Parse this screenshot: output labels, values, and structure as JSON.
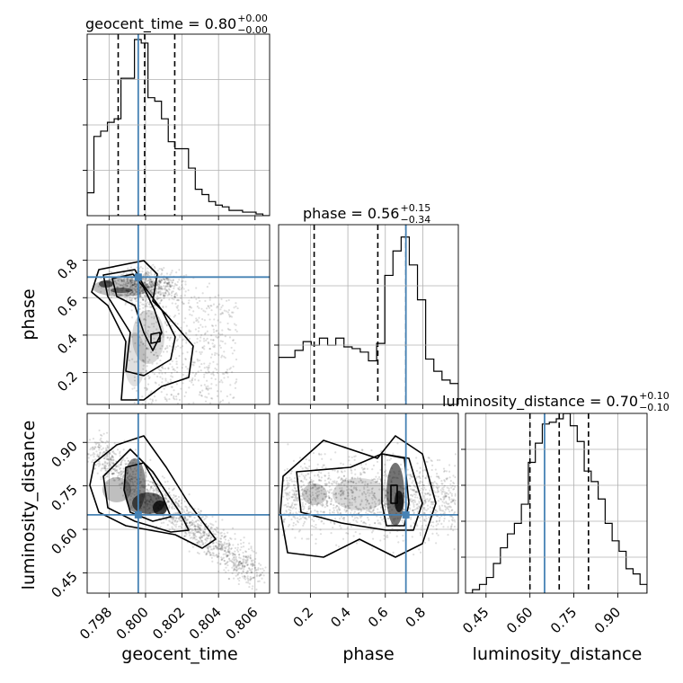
{
  "chart_data": {
    "type": "corner",
    "parameters": [
      "geocent_time",
      "phase",
      "luminosity_distance"
    ],
    "panel_titles": [
      {
        "name": "geocent_time",
        "median": "0.80",
        "plus": "+0.00",
        "minus": "−0.00"
      },
      {
        "name": "phase",
        "median": "0.56",
        "plus": "+0.15",
        "minus": "−0.34"
      },
      {
        "name": "luminosity_distance",
        "median": "0.70",
        "plus": "+0.10",
        "minus": "−0.10"
      }
    ],
    "xlabels": [
      "geocent_time",
      "phase",
      "luminosity_distance"
    ],
    "ylabels": [
      "phase",
      "luminosity_distance"
    ],
    "ranges": {
      "geocent_time": [
        0.7968,
        0.8068
      ],
      "phase": [
        0.03,
        0.99
      ],
      "luminosity_distance": [
        0.38,
        1.0
      ]
    },
    "ticks": {
      "geocent_time": [
        "0.798",
        "0.800",
        "0.802",
        "0.804",
        "0.806"
      ],
      "phase_x": [
        "0.2",
        "0.4",
        "0.6",
        "0.8"
      ],
      "phase_y": [
        "0.2",
        "0.4",
        "0.6",
        "0.8"
      ],
      "luminosity_distance": [
        "0.45",
        "0.60",
        "0.75",
        "0.90"
      ]
    },
    "truths": {
      "geocent_time": 0.7996,
      "phase": 0.71,
      "luminosity_distance": 0.65
    },
    "quantiles": {
      "geocent_time": [
        0.7985,
        0.79995,
        0.8016
      ],
      "phase": [
        0.22,
        0.56,
        0.71
      ],
      "luminosity_distance": [
        0.6,
        0.7,
        0.8
      ]
    },
    "hist_geocent_time": [
      0.13,
      0.45,
      0.48,
      0.53,
      0.55,
      0.78,
      0.78,
      1.0,
      0.98,
      0.67,
      0.65,
      0.55,
      0.42,
      0.38,
      0.38,
      0.27,
      0.15,
      0.12,
      0.08,
      0.06,
      0.05,
      0.03,
      0.03,
      0.02,
      0.02,
      0.01,
      0.0
    ],
    "hist_phase": [
      0.27,
      0.27,
      0.31,
      0.36,
      0.34,
      0.38,
      0.34,
      0.38,
      0.33,
      0.32,
      0.3,
      0.25,
      0.35,
      0.74,
      0.88,
      0.96,
      0.8,
      0.6,
      0.26,
      0.19,
      0.14,
      0.12
    ],
    "hist_luminosity_distance": [
      0.0,
      0.02,
      0.05,
      0.09,
      0.17,
      0.26,
      0.34,
      0.4,
      0.51,
      0.75,
      0.86,
      0.97,
      0.98,
      1.0,
      1.03,
      0.96,
      0.87,
      0.7,
      0.64,
      0.54,
      0.4,
      0.3,
      0.24,
      0.14,
      0.11,
      0.05
    ]
  }
}
